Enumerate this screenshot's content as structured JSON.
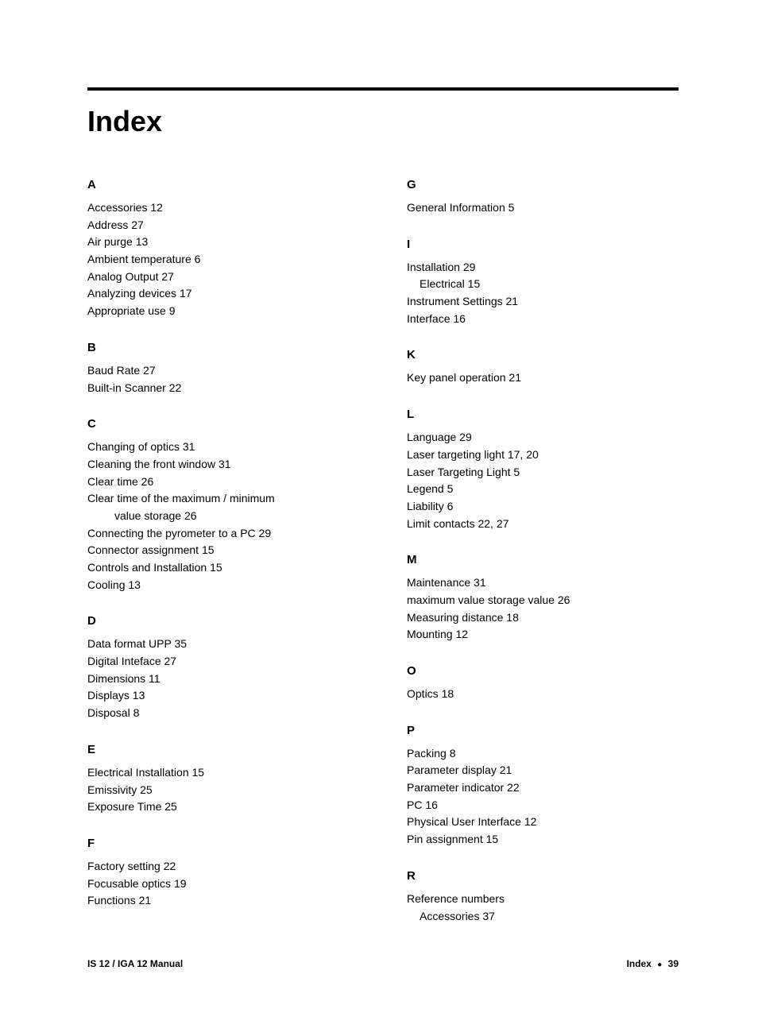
{
  "title": "Index",
  "leftColumn": [
    {
      "letter": "A",
      "entries": [
        {
          "text": "Accessories 12"
        },
        {
          "text": "Address 27"
        },
        {
          "text": "Air purge 13"
        },
        {
          "text": "Ambient temperature 6"
        },
        {
          "text": "Analog Output 27"
        },
        {
          "text": "Analyzing devices 17"
        },
        {
          "text": "Appropriate use 9"
        }
      ]
    },
    {
      "letter": "B",
      "entries": [
        {
          "text": "Baud Rate 27"
        },
        {
          "text": "Built-in Scanner 22"
        }
      ]
    },
    {
      "letter": "C",
      "entries": [
        {
          "text": "Changing of optics 31"
        },
        {
          "text": "Cleaning the front window 31"
        },
        {
          "text": "Clear time 26"
        },
        {
          "text": "Clear time of the maximum / minimum"
        },
        {
          "text": "value storage 26",
          "continuation": true
        },
        {
          "text": "Connecting the pyrometer to a PC 29"
        },
        {
          "text": "Connector assignment 15"
        },
        {
          "text": "Controls and Installation 15"
        },
        {
          "text": "Cooling 13"
        }
      ]
    },
    {
      "letter": "D",
      "entries": [
        {
          "text": "Data format UPP 35"
        },
        {
          "text": "Digital Inteface 27"
        },
        {
          "text": "Dimensions 11"
        },
        {
          "text": "Displays 13"
        },
        {
          "text": "Disposal 8"
        }
      ]
    },
    {
      "letter": "E",
      "entries": [
        {
          "text": "Electrical Installation 15"
        },
        {
          "text": "Emissivity 25"
        },
        {
          "text": "Exposure Time 25"
        }
      ]
    },
    {
      "letter": "F",
      "entries": [
        {
          "text": "Factory setting 22"
        },
        {
          "text": "Focusable optics 19"
        },
        {
          "text": "Functions 21"
        }
      ]
    }
  ],
  "rightColumn": [
    {
      "letter": "G",
      "entries": [
        {
          "text": "General Information 5"
        }
      ]
    },
    {
      "letter": "I",
      "entries": [
        {
          "text": "Installation 29"
        },
        {
          "text": "Electrical 15",
          "sub": true
        },
        {
          "text": "Instrument Settings 21"
        },
        {
          "text": "Interface 16"
        }
      ]
    },
    {
      "letter": "K",
      "entries": [
        {
          "text": "Key panel operation 21"
        }
      ]
    },
    {
      "letter": "L",
      "entries": [
        {
          "text": "Language 29"
        },
        {
          "text": "Laser targeting light 17, 20"
        },
        {
          "text": "Laser Targeting Light 5"
        },
        {
          "text": "Legend 5"
        },
        {
          "text": "Liability 6"
        },
        {
          "text": "Limit contacts 22, 27"
        }
      ]
    },
    {
      "letter": "M",
      "entries": [
        {
          "text": "Maintenance 31"
        },
        {
          "text": "maximum value storage value 26"
        },
        {
          "text": "Measuring distance 18"
        },
        {
          "text": "Mounting 12"
        }
      ]
    },
    {
      "letter": "O",
      "entries": [
        {
          "text": "Optics 18"
        }
      ]
    },
    {
      "letter": "P",
      "entries": [
        {
          "text": "Packing 8"
        },
        {
          "text": "Parameter display 21"
        },
        {
          "text": "Parameter indicator 22"
        },
        {
          "text": "PC 16"
        },
        {
          "text": "Physical User Interface 12"
        },
        {
          "text": "Pin assignment 15"
        }
      ]
    },
    {
      "letter": "R",
      "entries": [
        {
          "text": "Reference numbers"
        },
        {
          "text": "Accessories 37",
          "sub": true
        }
      ]
    }
  ],
  "footer": {
    "left": "IS 12 / IGA 12 Manual",
    "rightLabel": "Index",
    "pageNumber": "39"
  }
}
